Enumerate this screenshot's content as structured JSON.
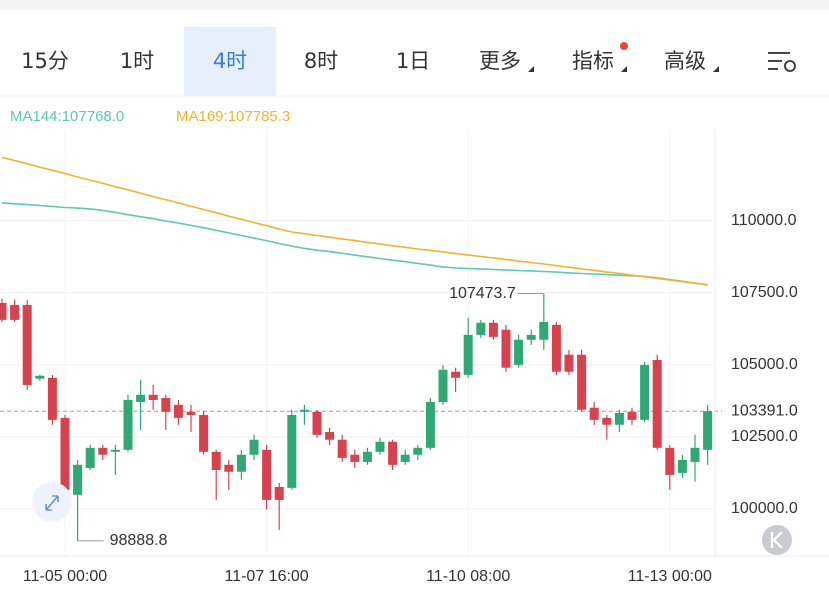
{
  "tabs": [
    "15分",
    "1时",
    "4时",
    "8时",
    "1日",
    "更多",
    "指标",
    "高级"
  ],
  "selected_tab": 2,
  "chart_data": {
    "type": "candlestick",
    "categories": [
      null,
      null,
      null,
      null,
      null,
      "11-05 00:00",
      null,
      null,
      null,
      null,
      null,
      null,
      null,
      null,
      null,
      null,
      null,
      null,
      null,
      null,
      null,
      "11-07 16:00",
      null,
      null,
      null,
      null,
      null,
      null,
      null,
      null,
      null,
      null,
      null,
      null,
      null,
      null,
      null,
      "11-10 08:00",
      null,
      null,
      null,
      null,
      null,
      null,
      null,
      null,
      null,
      null,
      null,
      null,
      null,
      null,
      null,
      "11-13 00:00",
      null,
      null,
      null
    ],
    "open": [
      107150,
      107080,
      107080,
      104520,
      104550,
      103160,
      100490,
      101420,
      102120,
      101980,
      102050,
      103710,
      103960,
      103850,
      103610,
      103370,
      103260,
      101980,
      101530,
      101290,
      101880,
      102050,
      100760,
      100730,
      103370,
      103370,
      102670,
      102400,
      101880,
      101630,
      101980,
      102330,
      101630,
      101880,
      102120,
      103710,
      104760,
      104650,
      106040,
      106460,
      106220,
      105000,
      105870,
      105870,
      106390,
      105350,
      105350,
      103510,
      103160,
      102920,
      103370,
      103090,
      105170,
      102120,
      101250,
      101630,
      102050
    ],
    "high": [
      107290,
      107260,
      107260,
      104660,
      104650,
      103260,
      101700,
      102220,
      102220,
      102220,
      103960,
      104480,
      104300,
      103960,
      103780,
      103610,
      103400,
      102050,
      101700,
      102050,
      102570,
      102220,
      100900,
      103440,
      103610,
      103440,
      102810,
      102570,
      102050,
      102120,
      102470,
      102400,
      102050,
      102220,
      103850,
      105000,
      104900,
      106630,
      106560,
      106560,
      106390,
      106040,
      106220,
      107473.7,
      106490,
      105520,
      105520,
      103710,
      103260,
      103440,
      103510,
      105100,
      105350,
      102220,
      101880,
      102570,
      103610
    ],
    "low": [
      106490,
      106490,
      104130,
      104450,
      102920,
      100030,
      98888.8,
      101350,
      101700,
      101180,
      101980,
      102740,
      103440,
      102740,
      102920,
      102670,
      101880,
      100310,
      100660,
      101010,
      101700,
      99970,
      99270,
      100660,
      102920,
      102470,
      102220,
      101630,
      101420,
      101530,
      101880,
      101350,
      101530,
      101700,
      102050,
      103610,
      104060,
      104550,
      105940,
      105870,
      104760,
      104900,
      105690,
      105520,
      104650,
      104650,
      103370,
      102920,
      102400,
      102670,
      102920,
      103020,
      102050,
      100660,
      101080,
      100940,
      101530
    ],
    "close": [
      106560,
      106560,
      104300,
      104620,
      103090,
      100660,
      101530,
      102120,
      101880,
      102050,
      103780,
      103960,
      103780,
      103370,
      103160,
      103260,
      101980,
      101350,
      101290,
      101880,
      102400,
      100310,
      100310,
      103260,
      103440,
      102570,
      102400,
      101770,
      101630,
      101980,
      102330,
      101530,
      101880,
      102120,
      103710,
      104830,
      104550,
      106040,
      106460,
      105970,
      104900,
      105870,
      106040,
      106490,
      104760,
      104760,
      103440,
      103090,
      102920,
      103330,
      103090,
      105000,
      102120,
      101180,
      101700,
      102120,
      103391.0
    ],
    "up_color": "#2fa876",
    "down_color": "#d8424f",
    "lines": [
      {
        "name": "MA144:107768.0",
        "color": "#5cc9b2",
        "values": [
          110620,
          110590,
          110560,
          110530,
          110500,
          110460,
          110440,
          110410,
          110360,
          110290,
          110210,
          110140,
          110070,
          109990,
          109920,
          109840,
          109760,
          109670,
          109580,
          109490,
          109400,
          109310,
          109210,
          109120,
          109040,
          108980,
          108930,
          108870,
          108810,
          108750,
          108690,
          108630,
          108580,
          108520,
          108460,
          108400,
          108360,
          108340,
          108330,
          108310,
          108290,
          108270,
          108260,
          108240,
          108220,
          108190,
          108170,
          108150,
          108130,
          108110,
          108090,
          108070,
          108020,
          107960,
          107900,
          107840,
          107768.0
        ]
      },
      {
        "name": "MA169:107785.3",
        "color": "#f0b431",
        "values": [
          112200,
          112090,
          111980,
          111860,
          111750,
          111640,
          111520,
          111410,
          111300,
          111180,
          111070,
          110960,
          110840,
          110730,
          110620,
          110500,
          110390,
          110280,
          110160,
          110050,
          109940,
          109830,
          109710,
          109610,
          109550,
          109490,
          109430,
          109370,
          109310,
          109250,
          109190,
          109130,
          109080,
          109020,
          108970,
          108920,
          108860,
          108810,
          108760,
          108710,
          108660,
          108600,
          108550,
          108500,
          108440,
          108390,
          108330,
          108280,
          108220,
          108170,
          108110,
          108060,
          108000,
          107940,
          107890,
          107830,
          107785.3
        ]
      }
    ],
    "ylim": [
      98400,
      113150
    ],
    "yticks": [
      {
        "value": 100000,
        "label": "100000.0"
      },
      {
        "value": 102500,
        "label": "102500.0"
      },
      {
        "value": 105000,
        "label": "105000.0"
      },
      {
        "value": 107500,
        "label": "107500.0"
      },
      {
        "value": 110000,
        "label": "110000.0"
      }
    ],
    "last_price_label": "103391.0",
    "grid": true
  }
}
